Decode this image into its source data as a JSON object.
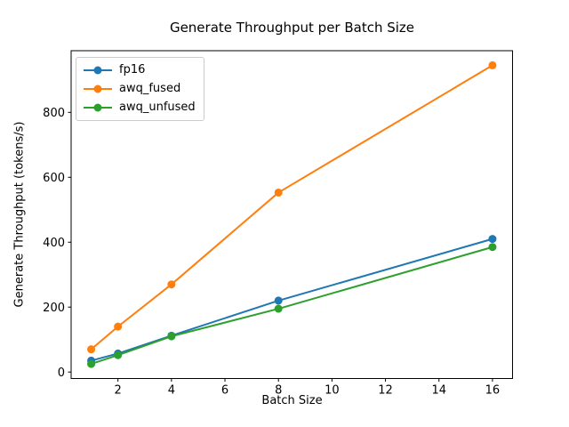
{
  "chart_data": {
    "type": "line",
    "title": "Generate Throughput per Batch Size",
    "xlabel": "Batch Size",
    "ylabel": "Generate Throughput (tokens/s)",
    "x": [
      1,
      2,
      4,
      8,
      16
    ],
    "series": [
      {
        "name": "fp16",
        "color": "#1f77b4",
        "values": [
          35,
          57,
          112,
          220,
          410
        ]
      },
      {
        "name": "awq_fused",
        "color": "#ff7f0e",
        "values": [
          70,
          140,
          270,
          553,
          945
        ]
      },
      {
        "name": "awq_unfused",
        "color": "#2ca02c",
        "values": [
          25,
          52,
          110,
          195,
          385
        ]
      }
    ],
    "xlim": [
      0.25,
      16.75
    ],
    "ylim": [
      -20,
      990
    ],
    "xticks": [
      2,
      4,
      6,
      8,
      10,
      12,
      14,
      16
    ],
    "yticks": [
      0,
      200,
      400,
      600,
      800
    ],
    "grid": false,
    "legend": {
      "position": "upper-left",
      "entries": [
        "fp16",
        "awq_fused",
        "awq_unfused"
      ]
    },
    "axis_color": "#000000",
    "background": "#ffffff",
    "marker": "circle"
  }
}
